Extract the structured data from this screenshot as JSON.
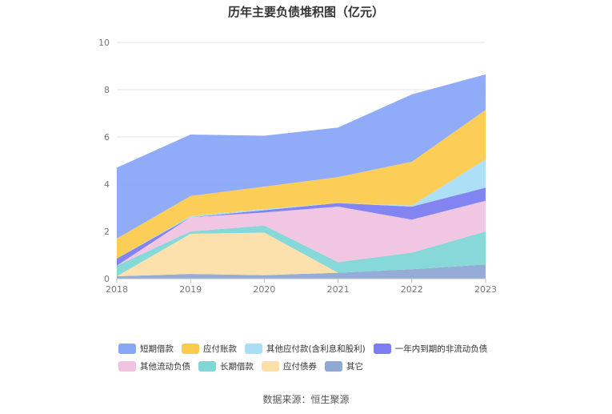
{
  "chart_data": {
    "type": "area",
    "stacked": true,
    "title": "历年主要负债堆积图（亿元）",
    "x": [
      "2018",
      "2019",
      "2020",
      "2021",
      "2022",
      "2023"
    ],
    "ylim": [
      0,
      10
    ],
    "yticks": [
      "0",
      "2",
      "4",
      "6",
      "8",
      "10"
    ],
    "grid": true,
    "legend_position": "bottom",
    "series": [
      {
        "name": "其它",
        "color": "#8fa8d4",
        "values": [
          0.1,
          0.2,
          0.15,
          0.25,
          0.4,
          0.6
        ]
      },
      {
        "name": "应付债券",
        "color": "#fddfa8",
        "values": [
          0.0,
          1.7,
          1.8,
          0.0,
          0.0,
          0.0
        ]
      },
      {
        "name": "长期借款",
        "color": "#81d6d6",
        "values": [
          0.45,
          0.1,
          0.3,
          0.45,
          0.7,
          1.4
        ]
      },
      {
        "name": "其他流动负债",
        "color": "#f0c3e0",
        "values": [
          0.0,
          0.6,
          0.55,
          2.35,
          1.4,
          1.3
        ]
      },
      {
        "name": "一年内到期的非流动负债",
        "color": "#7b7df0",
        "values": [
          0.3,
          0.0,
          0.1,
          0.15,
          0.55,
          0.55
        ]
      },
      {
        "name": "其他应付款(含利息和股利)",
        "color": "#a9def7",
        "values": [
          0.0,
          0.05,
          0.05,
          0.0,
          0.05,
          1.2
        ]
      },
      {
        "name": "应付账款",
        "color": "#fccb4e",
        "values": [
          0.85,
          0.85,
          0.95,
          1.1,
          1.85,
          2.1
        ]
      },
      {
        "name": "短期借款",
        "color": "#8aa6f8",
        "values": [
          3.0,
          2.6,
          2.15,
          2.1,
          2.85,
          1.5
        ]
      }
    ]
  },
  "legend": {
    "row1": [
      "短期借款",
      "应付账款",
      "其他应付款(含利息和股利)",
      "一年内到期的非流动负债"
    ],
    "row2": [
      "其他流动负债",
      "长期借款",
      "应付债券",
      "其它"
    ]
  },
  "source": "数据来源：恒生聚源"
}
